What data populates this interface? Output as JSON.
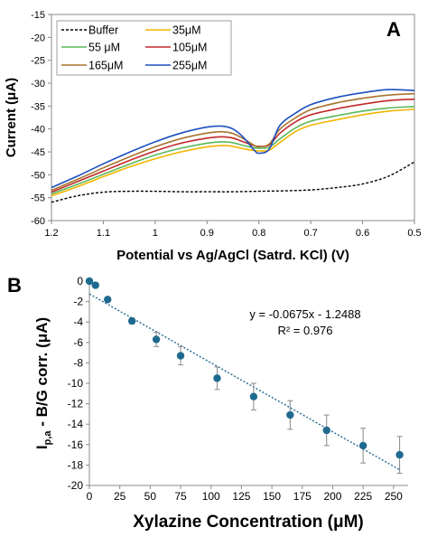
{
  "chart_data": [
    {
      "panel_label": "A",
      "type": "line",
      "xlabel": "Potential vs Ag/AgCl (Satrd. KCl) (V)",
      "ylabel": "Current (μA)",
      "xlim": [
        1.2,
        0.5
      ],
      "x_reversed": true,
      "ylim": [
        -60,
        -15
      ],
      "xticks": [
        1.2,
        1.1,
        1,
        0.9,
        0.8,
        0.7,
        0.6,
        0.5
      ],
      "yticks": [
        -15,
        -20,
        -25,
        -30,
        -35,
        -40,
        -45,
        -50,
        -55,
        -60
      ],
      "grid": false,
      "legend_position": "top-left",
      "series": [
        {
          "name": "Buffer",
          "color": "#000000",
          "dash": true,
          "x": [
            1.2,
            1.15,
            1.1,
            1.05,
            1.0,
            0.95,
            0.9,
            0.85,
            0.8,
            0.75,
            0.7,
            0.65,
            0.6,
            0.55,
            0.5
          ],
          "y": [
            -56.0,
            -54.6,
            -53.8,
            -53.6,
            -53.6,
            -53.7,
            -53.7,
            -53.7,
            -53.6,
            -53.5,
            -53.3,
            -52.8,
            -52.0,
            -50.3,
            -47.2
          ]
        },
        {
          "name": "35μM",
          "color": "#f2b500",
          "x": [
            1.2,
            1.15,
            1.1,
            1.05,
            1.0,
            0.95,
            0.9,
            0.87,
            0.85,
            0.83,
            0.81,
            0.8,
            0.78,
            0.76,
            0.73,
            0.7,
            0.65,
            0.6,
            0.55,
            0.5
          ],
          "y": [
            -54.6,
            -52.6,
            -50.4,
            -48.3,
            -46.5,
            -45.0,
            -43.9,
            -43.6,
            -43.8,
            -44.3,
            -44.7,
            -44.8,
            -44.6,
            -43.0,
            -40.6,
            -39.2,
            -38.0,
            -36.9,
            -36.1,
            -35.7
          ]
        },
        {
          "name": "55 μM",
          "color": "#5cb85c",
          "x": [
            1.2,
            1.15,
            1.1,
            1.05,
            1.0,
            0.95,
            0.9,
            0.87,
            0.85,
            0.83,
            0.81,
            0.8,
            0.78,
            0.76,
            0.73,
            0.7,
            0.65,
            0.6,
            0.55,
            0.5
          ],
          "y": [
            -54.2,
            -52.1,
            -49.9,
            -47.7,
            -45.7,
            -44.2,
            -43.1,
            -42.8,
            -43.0,
            -43.6,
            -44.1,
            -44.2,
            -44.0,
            -42.2,
            -39.8,
            -38.3,
            -37.1,
            -36.1,
            -35.4,
            -35.1
          ]
        },
        {
          "name": "105μM",
          "color": "#c0282a",
          "x": [
            1.2,
            1.15,
            1.1,
            1.05,
            1.0,
            0.95,
            0.9,
            0.87,
            0.85,
            0.83,
            0.81,
            0.8,
            0.78,
            0.76,
            0.73,
            0.7,
            0.65,
            0.6,
            0.55,
            0.5
          ],
          "y": [
            -53.8,
            -51.5,
            -49.2,
            -46.9,
            -44.8,
            -43.1,
            -42.0,
            -41.7,
            -42.0,
            -42.8,
            -43.6,
            -43.8,
            -43.5,
            -41.0,
            -38.5,
            -36.9,
            -35.6,
            -34.6,
            -33.8,
            -33.5
          ]
        },
        {
          "name": "165μM",
          "color": "#a8742e",
          "x": [
            1.2,
            1.15,
            1.1,
            1.05,
            1.0,
            0.95,
            0.9,
            0.87,
            0.85,
            0.83,
            0.81,
            0.8,
            0.78,
            0.76,
            0.73,
            0.7,
            0.65,
            0.6,
            0.55,
            0.5
          ],
          "y": [
            -53.4,
            -51.0,
            -48.5,
            -46.1,
            -43.9,
            -42.1,
            -40.9,
            -40.6,
            -41.0,
            -42.1,
            -43.5,
            -43.9,
            -43.3,
            -40.1,
            -37.6,
            -35.8,
            -34.3,
            -33.3,
            -32.6,
            -32.3
          ]
        },
        {
          "name": "255μM",
          "color": "#1c4fbf",
          "x": [
            1.2,
            1.15,
            1.1,
            1.05,
            1.0,
            0.95,
            0.9,
            0.87,
            0.85,
            0.83,
            0.81,
            0.8,
            0.78,
            0.76,
            0.73,
            0.7,
            0.65,
            0.6,
            0.55,
            0.5
          ],
          "y": [
            -52.8,
            -50.3,
            -47.6,
            -45.1,
            -42.8,
            -40.9,
            -39.6,
            -39.4,
            -40.0,
            -41.8,
            -44.5,
            -45.3,
            -44.4,
            -39.3,
            -36.6,
            -34.7,
            -33.1,
            -32.1,
            -31.4,
            -31.6
          ]
        }
      ]
    },
    {
      "panel_label": "B",
      "type": "scatter",
      "xlabel": "Xylazine Concentration (μM)",
      "ylabel_main": "I",
      "ylabel_sub": "p,a",
      "ylabel_rest": " - B/G corr. (μA)",
      "xlim": [
        0,
        262
      ],
      "ylim": [
        -20,
        0
      ],
      "xticks": [
        0,
        25,
        50,
        75,
        100,
        125,
        150,
        175,
        200,
        225,
        250
      ],
      "yticks": [
        0,
        -2,
        -4,
        -6,
        -8,
        -10,
        -12,
        -14,
        -16,
        -18,
        -20
      ],
      "grid": false,
      "marker_color": "#1f6a8f",
      "trendline_color": "#1f6a8f",
      "trendline": {
        "slope": -0.0675,
        "intercept": -1.2488,
        "x_range": [
          0,
          255
        ]
      },
      "equation": "y = -0.0675x - 1.2488",
      "r_squared": "R² = 0.976",
      "points": [
        {
          "x": 0,
          "y": 0.0,
          "err": 0.0
        },
        {
          "x": 5,
          "y": -0.4,
          "err": 0.1
        },
        {
          "x": 15,
          "y": -1.8,
          "err": 0.2
        },
        {
          "x": 35,
          "y": -3.9,
          "err": 0.3
        },
        {
          "x": 55,
          "y": -5.7,
          "err": 0.7
        },
        {
          "x": 75,
          "y": -7.3,
          "err": 0.9
        },
        {
          "x": 105,
          "y": -9.5,
          "err": 1.1
        },
        {
          "x": 135,
          "y": -11.3,
          "err": 1.3
        },
        {
          "x": 165,
          "y": -13.1,
          "err": 1.4
        },
        {
          "x": 195,
          "y": -14.6,
          "err": 1.5
        },
        {
          "x": 225,
          "y": -16.1,
          "err": 1.7
        },
        {
          "x": 255,
          "y": -17.0,
          "err": 1.8
        }
      ]
    }
  ]
}
